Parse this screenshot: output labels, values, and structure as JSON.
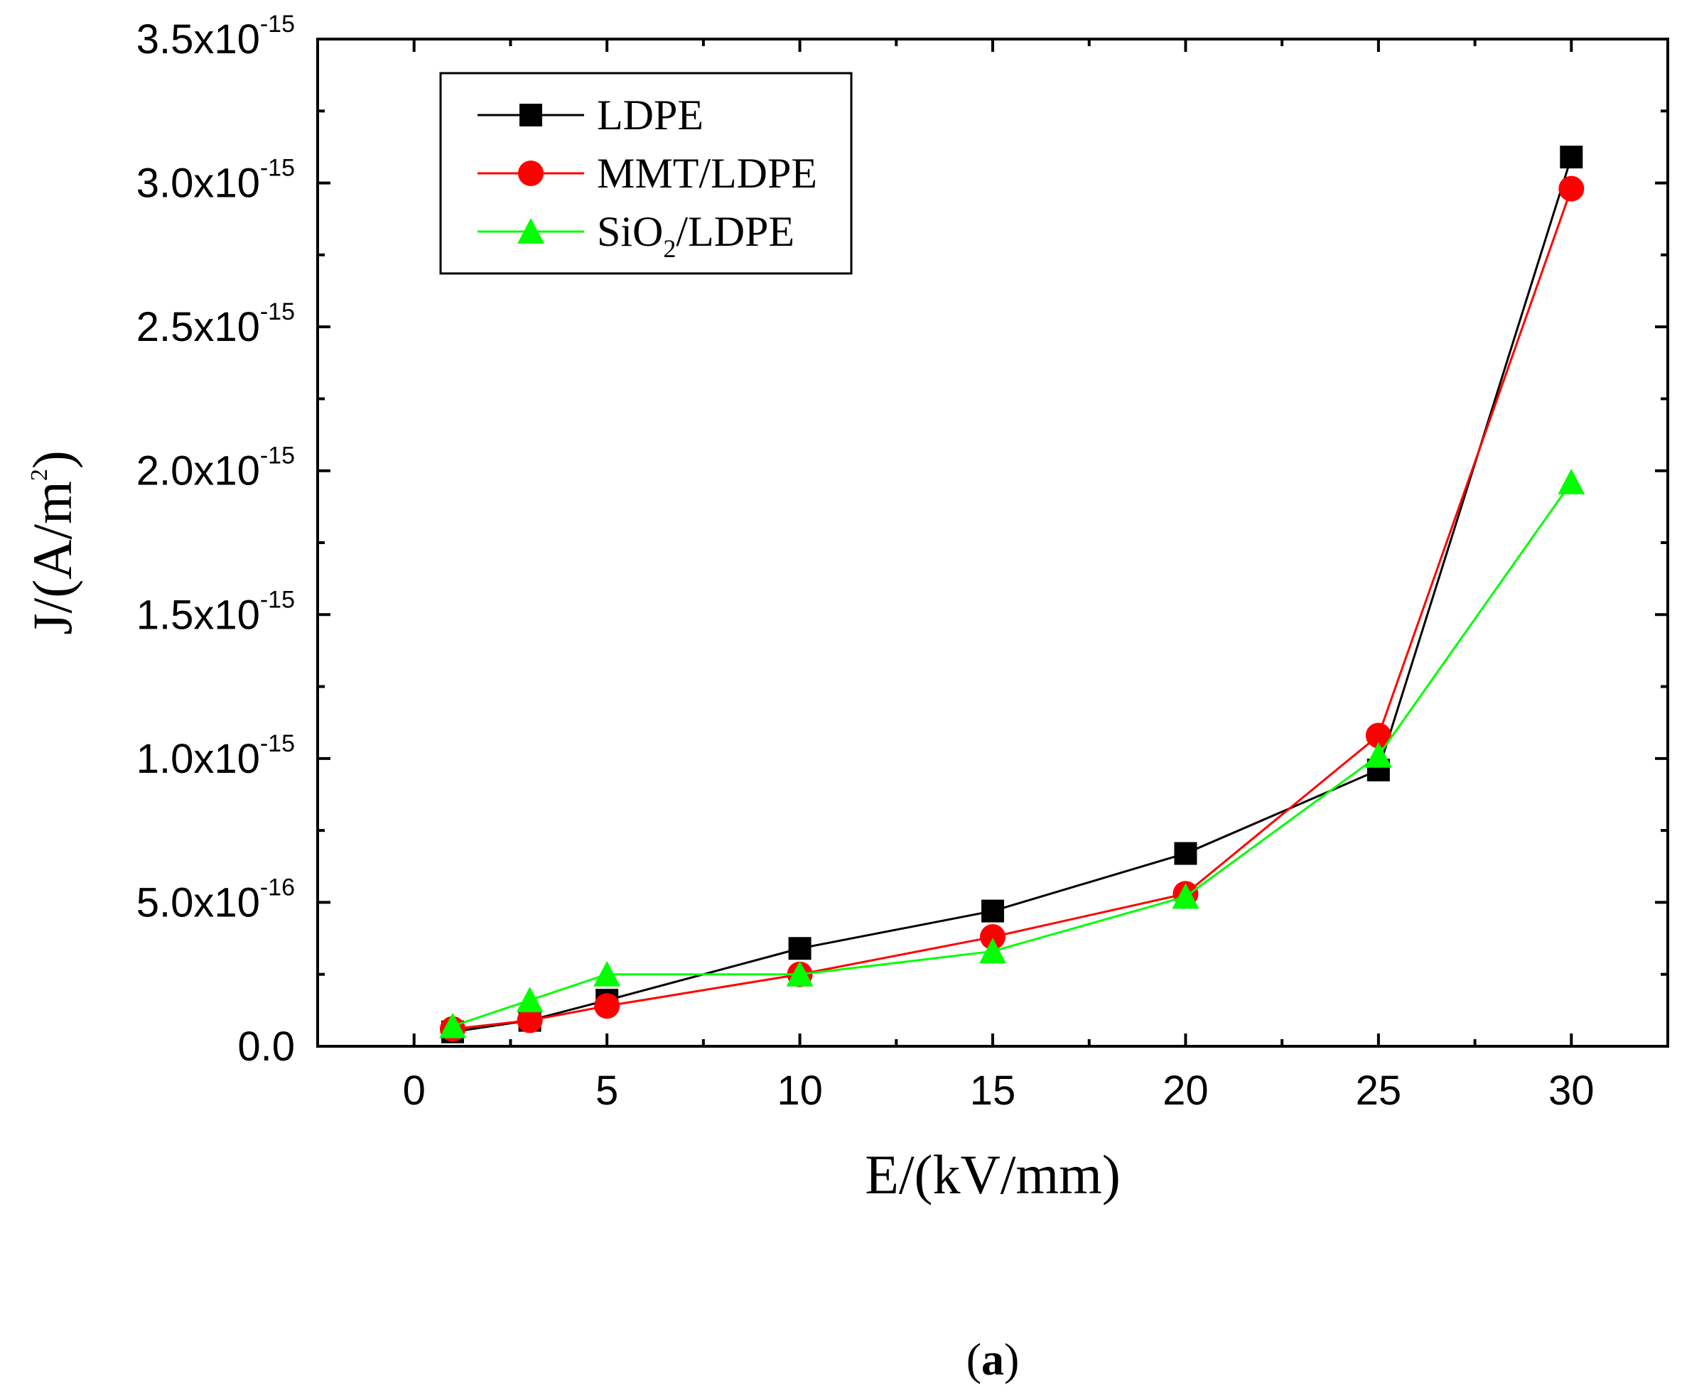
{
  "chart_data": {
    "type": "line",
    "xlabel": "E/(kV/mm)",
    "ylabel": "J/(A/m2)",
    "ylabel_parts": {
      "prefix": "J/(A/m",
      "superscript": "2",
      "suffix": ")"
    },
    "xlim": [
      -2.5,
      32.5
    ],
    "ylim": [
      0,
      3.5e-15
    ],
    "xticks": [
      0,
      5,
      10,
      15,
      20,
      25,
      30
    ],
    "xtick_labels": [
      "0",
      "5",
      "10",
      "15",
      "20",
      "25",
      "30"
    ],
    "yticks": [
      0,
      5e-16,
      1e-15,
      1.5e-15,
      2e-15,
      2.5e-15,
      3e-15,
      3.5e-15
    ],
    "ytick_labels": [
      {
        "mantissa": "0.0",
        "exponent": ""
      },
      {
        "mantissa": "5.0x10",
        "exponent": "-16"
      },
      {
        "mantissa": "1.0x10",
        "exponent": "-15"
      },
      {
        "mantissa": "1.5x10",
        "exponent": "-15"
      },
      {
        "mantissa": "2.0x10",
        "exponent": "-15"
      },
      {
        "mantissa": "2.5x10",
        "exponent": "-15"
      },
      {
        "mantissa": "3.0x10",
        "exponent": "-15"
      },
      {
        "mantissa": "3.5x10",
        "exponent": "-15"
      }
    ],
    "legend_position": "top-left",
    "series": [
      {
        "name": "LDPE",
        "legend_label": {
          "main": "LDPE",
          "sub": "",
          "rest": ""
        },
        "color": "#000000",
        "marker": "square",
        "x": [
          1,
          3,
          5,
          10,
          15,
          20,
          25,
          30
        ],
        "y": [
          5e-17,
          9e-17,
          1.6e-16,
          3.4e-16,
          4.7e-16,
          6.7e-16,
          9.6e-16,
          3.09e-15
        ]
      },
      {
        "name": "MMT/LDPE",
        "legend_label": {
          "main": "MMT/LDPE",
          "sub": "",
          "rest": ""
        },
        "color": "#ff0000",
        "marker": "circle",
        "x": [
          1,
          3,
          5,
          10,
          15,
          20,
          25,
          30
        ],
        "y": [
          6e-17,
          9e-17,
          1.4e-16,
          2.5e-16,
          3.8e-16,
          5.3e-16,
          1.08e-15,
          2.98e-15
        ]
      },
      {
        "name": "SiO2/LDPE",
        "legend_label": {
          "main": "SiO",
          "sub": "2",
          "rest": "/LDPE"
        },
        "color": "#00ff00",
        "marker": "triangle",
        "x": [
          1,
          3,
          5,
          10,
          15,
          20,
          25,
          30
        ],
        "y": [
          7e-17,
          1.6e-16,
          2.5e-16,
          2.5e-16,
          3.3e-16,
          5.2e-16,
          1.01e-15,
          1.96e-15
        ]
      }
    ]
  },
  "caption": {
    "open": "(",
    "letter": "a",
    "close": ")"
  }
}
